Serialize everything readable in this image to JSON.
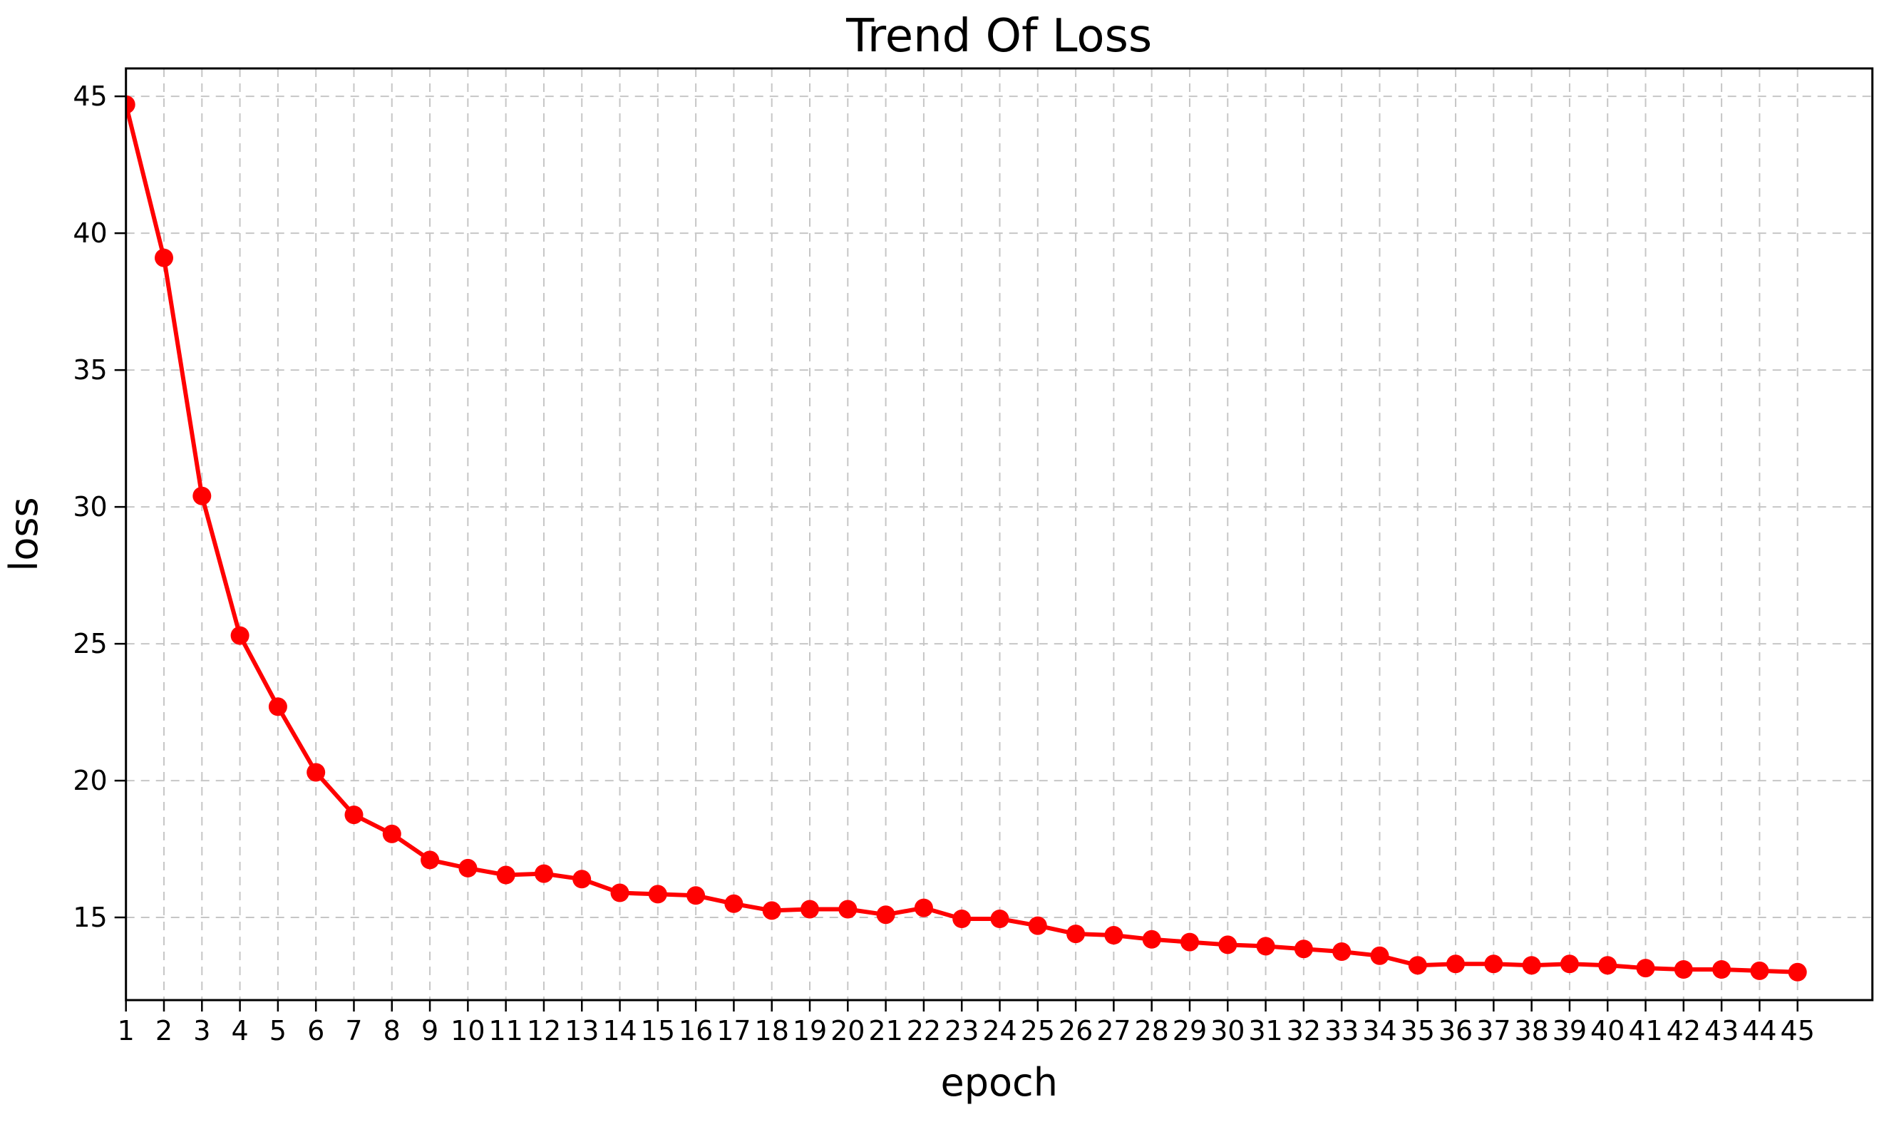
{
  "chart_data": {
    "type": "line",
    "title": "Trend Of Loss",
    "xlabel": "epoch",
    "ylabel": "loss",
    "legend_position": "none",
    "background_color": "#ffffff",
    "spine_color": "#000000",
    "grid": {
      "show": true,
      "style": "dashed",
      "color": "#c6c6c6"
    },
    "series": [
      {
        "name": "loss",
        "color": "#ff0000",
        "marker": "circle",
        "x": [
          1,
          2,
          3,
          4,
          5,
          6,
          7,
          8,
          9,
          10,
          11,
          12,
          13,
          14,
          15,
          16,
          17,
          18,
          19,
          20,
          21,
          22,
          23,
          24,
          25,
          26,
          27,
          28,
          29,
          30,
          31,
          32,
          33,
          34,
          35,
          36,
          37,
          38,
          39,
          40,
          41,
          42,
          43,
          44,
          45
        ],
        "y": [
          44.7,
          39.1,
          30.4,
          25.3,
          22.7,
          20.3,
          18.75,
          18.05,
          17.1,
          16.8,
          16.55,
          16.6,
          16.4,
          15.9,
          15.85,
          15.8,
          15.5,
          15.25,
          15.3,
          15.3,
          15.1,
          15.35,
          14.95,
          14.95,
          14.7,
          14.4,
          14.35,
          14.2,
          14.1,
          14.0,
          13.95,
          13.85,
          13.75,
          13.6,
          13.25,
          13.3,
          13.3,
          13.25,
          13.3,
          13.25,
          13.15,
          13.1,
          13.1,
          13.05,
          13.0
        ]
      }
    ],
    "xticks": [
      1,
      2,
      3,
      4,
      5,
      6,
      7,
      8,
      9,
      10,
      11,
      12,
      13,
      14,
      15,
      16,
      17,
      18,
      19,
      20,
      21,
      22,
      23,
      24,
      25,
      26,
      27,
      28,
      29,
      30,
      31,
      32,
      33,
      34,
      35,
      36,
      37,
      38,
      39,
      40,
      41,
      42,
      43,
      44,
      45
    ],
    "yticks": [
      15,
      20,
      25,
      30,
      35,
      40,
      45
    ],
    "xlim": [
      1,
      46.97
    ],
    "ylim": [
      11.98,
      46.02
    ]
  }
}
